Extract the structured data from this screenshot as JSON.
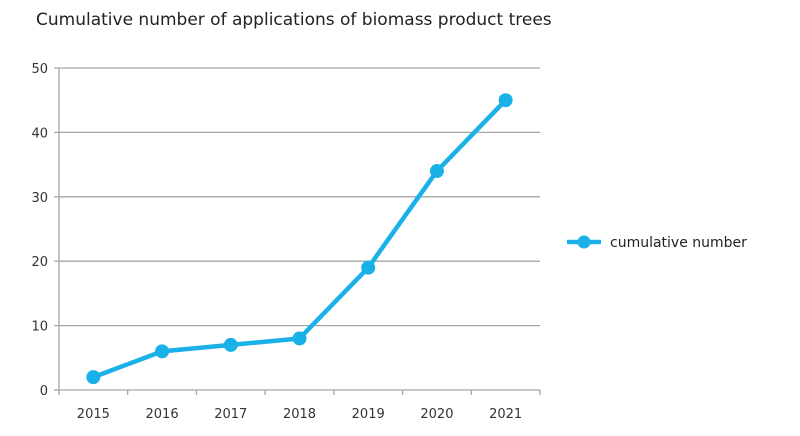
{
  "chart_data": {
    "type": "line",
    "title": "Cumulative number of applications of biomass product trees",
    "xlabel": "",
    "ylabel": "",
    "categories": [
      "2015",
      "2016",
      "2017",
      "2018",
      "2019",
      "2020",
      "2021"
    ],
    "series": [
      {
        "name": "cumulative number",
        "values": [
          2,
          6,
          7,
          8,
          19,
          34,
          45
        ],
        "color": "#1ab0e8"
      }
    ],
    "ylim": [
      0,
      50
    ],
    "yticks": [
      0,
      10,
      20,
      30,
      40,
      50
    ],
    "grid": true,
    "legend": "right"
  }
}
